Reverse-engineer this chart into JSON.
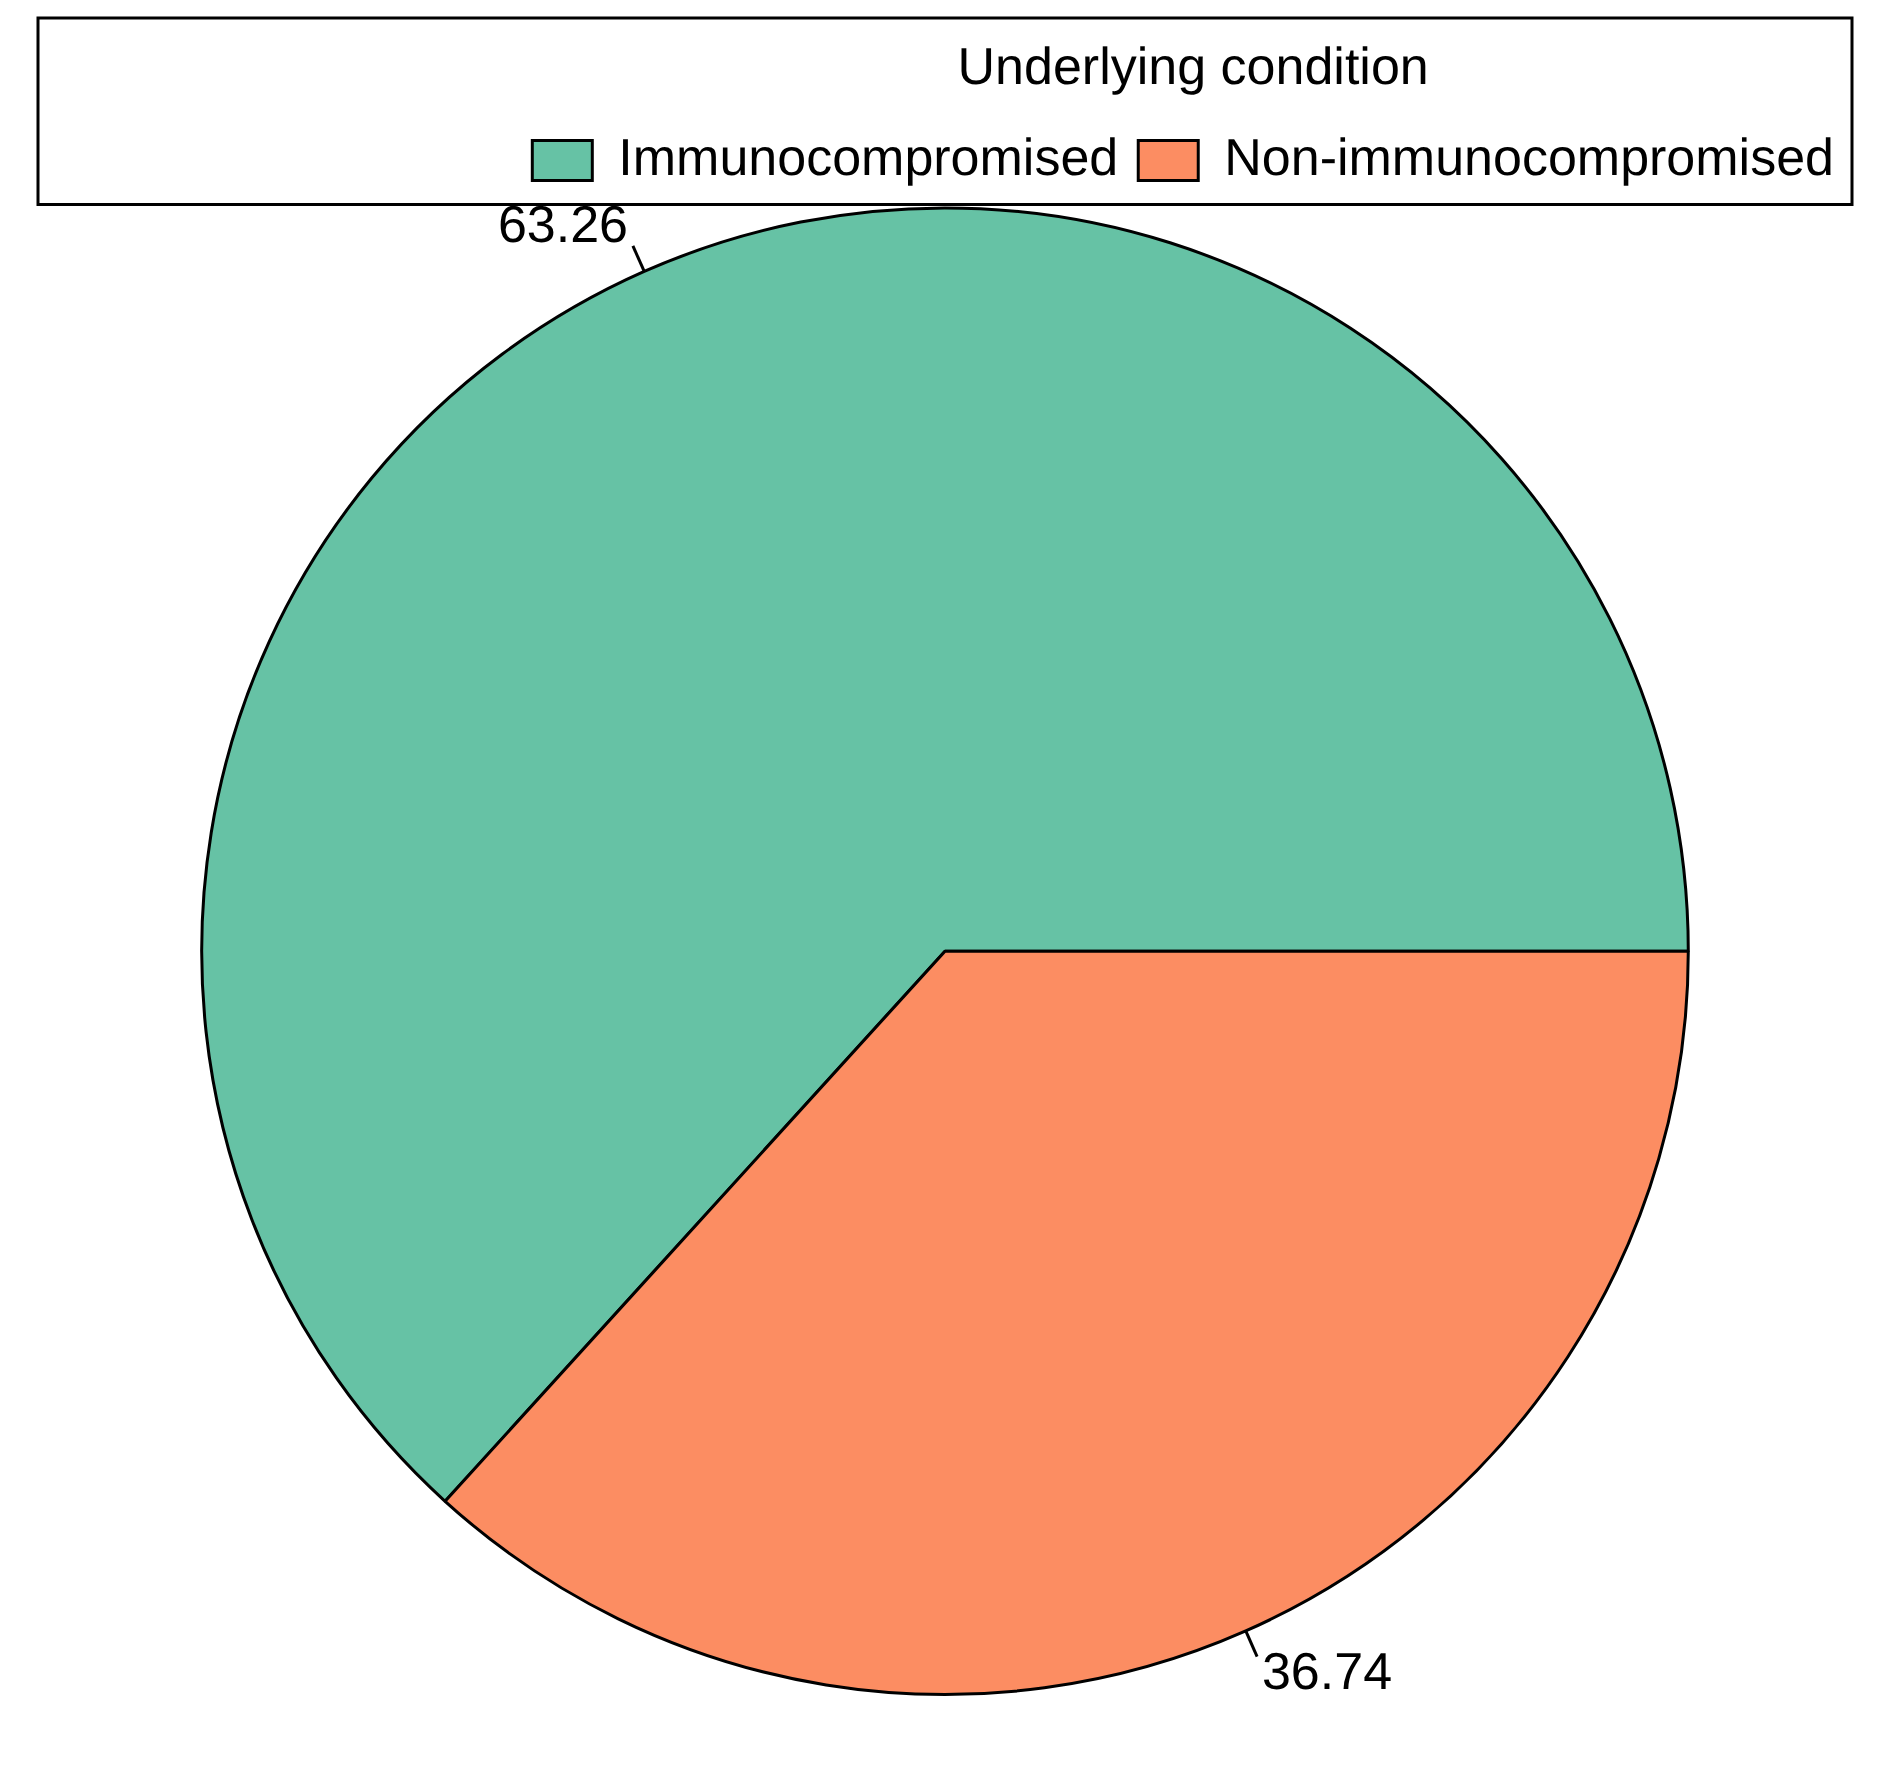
{
  "chart_data": {
    "type": "pie",
    "legend_title": "Underlying condition",
    "categories": [
      "Immunocompromised",
      "Non-immunocompromised"
    ],
    "values": [
      63.26,
      36.74
    ],
    "colors": [
      "#66c2a5",
      "#fc8d62"
    ],
    "data_labels": true,
    "legend": "top right"
  }
}
